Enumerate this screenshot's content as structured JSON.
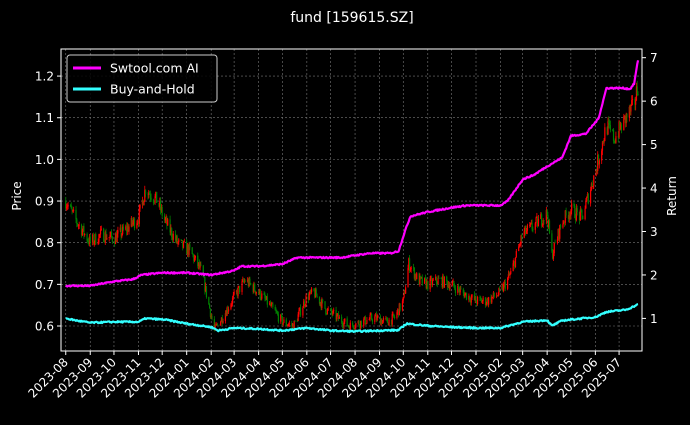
{
  "chart_data": {
    "type": "line",
    "title": "fund [159615.SZ]",
    "ylabel": "Price",
    "y2label": "Return",
    "ylim": [
      0.54,
      1.265
    ],
    "y2lim": [
      0.25,
      7.2
    ],
    "yticks": [
      "0.6",
      "0.7",
      "0.8",
      "0.9",
      "1.0",
      "1.1",
      "1.2"
    ],
    "y2ticks": [
      "1",
      "2",
      "3",
      "4",
      "5",
      "6",
      "7"
    ],
    "xticks": [
      "2023-08",
      "2023-09",
      "2023-10",
      "2023-11",
      "2023-12",
      "2024-01",
      "2024-02",
      "2024-03",
      "2024-04",
      "2024-05",
      "2024-06",
      "2024-07",
      "2024-08",
      "2024-09",
      "2024-10",
      "2024-11",
      "2024-12",
      "2025-01",
      "2025-02",
      "2025-03",
      "2025-04",
      "2025-05",
      "2025-06",
      "2025-07"
    ],
    "grid": true,
    "legend": {
      "position": "top-left",
      "entries": [
        {
          "label": "Swtool.com AI",
          "color": "#ff00ff"
        },
        {
          "label": "Buy-and-Hold",
          "color": "#33ffff"
        }
      ]
    },
    "candles": {
      "up_color": "#ff0000",
      "down_color": "#008000",
      "price_path": [
        [
          "2023-08-01",
          0.9
        ],
        [
          "2023-08-15",
          0.85
        ],
        [
          "2023-09-01",
          0.8
        ],
        [
          "2023-09-15",
          0.82
        ],
        [
          "2023-10-01",
          0.81
        ],
        [
          "2023-10-15",
          0.83
        ],
        [
          "2023-11-01",
          0.86
        ],
        [
          "2023-11-10",
          0.93
        ],
        [
          "2023-11-25",
          0.9
        ],
        [
          "2023-12-05",
          0.85
        ],
        [
          "2023-12-20",
          0.8
        ],
        [
          "2024-01-05",
          0.78
        ],
        [
          "2024-01-20",
          0.73
        ],
        [
          "2024-02-05",
          0.59
        ],
        [
          "2024-02-15",
          0.62
        ],
        [
          "2024-03-01",
          0.67
        ],
        [
          "2024-03-15",
          0.71
        ],
        [
          "2024-04-01",
          0.68
        ],
        [
          "2024-04-15",
          0.65
        ],
        [
          "2024-05-01",
          0.61
        ],
        [
          "2024-05-15",
          0.6
        ],
        [
          "2024-06-01",
          0.67
        ],
        [
          "2024-06-10",
          0.68
        ],
        [
          "2024-06-25",
          0.64
        ],
        [
          "2024-07-10",
          0.62
        ],
        [
          "2024-07-25",
          0.6
        ],
        [
          "2024-08-10",
          0.61
        ],
        [
          "2024-08-25",
          0.62
        ],
        [
          "2024-09-10",
          0.61
        ],
        [
          "2024-09-20",
          0.62
        ],
        [
          "2024-10-01",
          0.66
        ],
        [
          "2024-10-08",
          0.75
        ],
        [
          "2024-10-20",
          0.71
        ],
        [
          "2024-11-01",
          0.7
        ],
        [
          "2024-11-15",
          0.71
        ],
        [
          "2024-12-01",
          0.7
        ],
        [
          "2024-12-15",
          0.68
        ],
        [
          "2025-01-01",
          0.66
        ],
        [
          "2025-01-15",
          0.66
        ],
        [
          "2025-02-01",
          0.68
        ],
        [
          "2025-02-15",
          0.73
        ],
        [
          "2025-03-01",
          0.82
        ],
        [
          "2025-03-15",
          0.84
        ],
        [
          "2025-04-01",
          0.87
        ],
        [
          "2025-04-07",
          0.77
        ],
        [
          "2025-04-20",
          0.85
        ],
        [
          "2025-05-01",
          0.88
        ],
        [
          "2025-05-15",
          0.86
        ],
        [
          "2025-06-01",
          0.97
        ],
        [
          "2025-06-15",
          1.08
        ],
        [
          "2025-06-25",
          1.05
        ],
        [
          "2025-07-10",
          1.1
        ],
        [
          "2025-07-20",
          1.13
        ],
        [
          "2025-07-25",
          1.18
        ]
      ]
    },
    "series": [
      {
        "name": "Swtool.com AI",
        "axis": "right",
        "color": "#ff00ff",
        "points": [
          [
            "2023-08-01",
            1.75
          ],
          [
            "2023-09-01",
            1.75
          ],
          [
            "2023-10-01",
            1.85
          ],
          [
            "2023-10-25",
            1.9
          ],
          [
            "2023-11-05",
            2.0
          ],
          [
            "2023-12-01",
            2.05
          ],
          [
            "2024-01-01",
            2.05
          ],
          [
            "2024-02-01",
            2.0
          ],
          [
            "2024-03-01",
            2.1
          ],
          [
            "2024-03-10",
            2.2
          ],
          [
            "2024-04-01",
            2.2
          ],
          [
            "2024-05-01",
            2.25
          ],
          [
            "2024-05-20",
            2.4
          ],
          [
            "2024-06-15",
            2.4
          ],
          [
            "2024-07-15",
            2.4
          ],
          [
            "2024-08-01",
            2.45
          ],
          [
            "2024-08-20",
            2.5
          ],
          [
            "2024-09-15",
            2.5
          ],
          [
            "2024-09-25",
            2.55
          ],
          [
            "2024-10-03",
            3.0
          ],
          [
            "2024-10-10",
            3.35
          ],
          [
            "2024-11-01",
            3.45
          ],
          [
            "2024-12-01",
            3.55
          ],
          [
            "2024-12-20",
            3.6
          ],
          [
            "2025-01-15",
            3.6
          ],
          [
            "2025-02-01",
            3.6
          ],
          [
            "2025-02-10",
            3.7
          ],
          [
            "2025-03-01",
            4.2
          ],
          [
            "2025-03-15",
            4.3
          ],
          [
            "2025-04-01",
            4.5
          ],
          [
            "2025-04-20",
            4.7
          ],
          [
            "2025-05-01",
            5.2
          ],
          [
            "2025-05-20",
            5.25
          ],
          [
            "2025-06-05",
            5.6
          ],
          [
            "2025-06-15",
            6.3
          ],
          [
            "2025-07-05",
            6.3
          ],
          [
            "2025-07-15",
            6.28
          ],
          [
            "2025-07-20",
            6.4
          ],
          [
            "2025-07-25",
            6.95
          ]
        ]
      },
      {
        "name": "Buy-and-Hold",
        "axis": "right",
        "color": "#33ffff",
        "points": [
          [
            "2023-08-01",
            1.0
          ],
          [
            "2023-08-15",
            0.95
          ],
          [
            "2023-09-01",
            0.9
          ],
          [
            "2023-10-01",
            0.92
          ],
          [
            "2023-11-01",
            0.92
          ],
          [
            "2023-11-10",
            1.0
          ],
          [
            "2023-12-05",
            0.97
          ],
          [
            "2024-01-01",
            0.88
          ],
          [
            "2024-02-01",
            0.8
          ],
          [
            "2024-02-10",
            0.72
          ],
          [
            "2024-03-01",
            0.78
          ],
          [
            "2024-04-01",
            0.76
          ],
          [
            "2024-05-01",
            0.72
          ],
          [
            "2024-06-01",
            0.78
          ],
          [
            "2024-07-01",
            0.72
          ],
          [
            "2024-08-01",
            0.7
          ],
          [
            "2024-09-01",
            0.72
          ],
          [
            "2024-09-25",
            0.73
          ],
          [
            "2024-10-05",
            0.88
          ],
          [
            "2024-11-01",
            0.83
          ],
          [
            "2024-12-01",
            0.8
          ],
          [
            "2025-01-01",
            0.78
          ],
          [
            "2025-02-01",
            0.78
          ],
          [
            "2025-03-01",
            0.92
          ],
          [
            "2025-04-01",
            0.96
          ],
          [
            "2025-04-07",
            0.83
          ],
          [
            "2025-04-20",
            0.95
          ],
          [
            "2025-05-15",
            1.0
          ],
          [
            "2025-06-01",
            1.03
          ],
          [
            "2025-06-15",
            1.15
          ],
          [
            "2025-07-10",
            1.2
          ],
          [
            "2025-07-25",
            1.32
          ]
        ]
      }
    ]
  }
}
